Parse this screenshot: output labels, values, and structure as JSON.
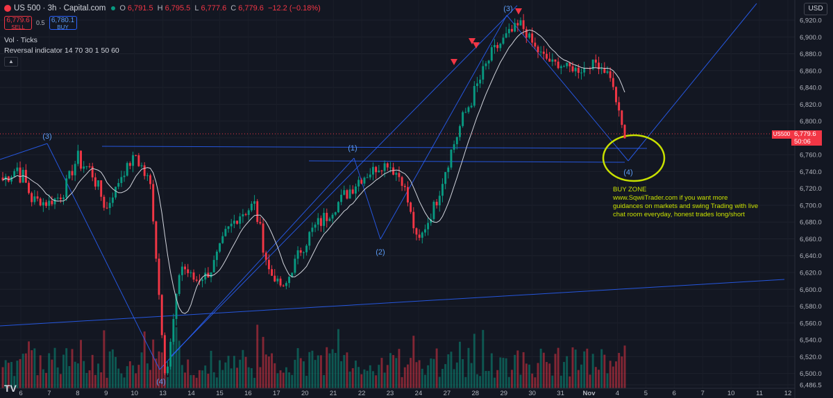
{
  "header": {
    "title": "US 500 · 3h · Capital.com",
    "ohlc": [
      {
        "label": "O",
        "value": "6,791.5"
      },
      {
        "label": "H",
        "value": "6,795.5"
      },
      {
        "label": "L",
        "value": "6,777.6"
      },
      {
        "label": "C",
        "value": "6,779.6"
      }
    ],
    "change": "−12.2 (−0.18%)",
    "sell_price": "6,779.6",
    "sell_label": "SELL",
    "spread": "0.5",
    "buy_price": "6,780.1",
    "buy_label": "BUY",
    "indicator_vol": "Vol · Ticks",
    "indicator_reversal": "Reversal indicator 14 70 30 1 50 60",
    "collapse_glyph": "▲"
  },
  "currency": "USD",
  "logo": "TV",
  "last_price": {
    "symbol": "US500",
    "price": "6,779.6",
    "countdown": "50:06"
  },
  "annotation": {
    "title": "BUY ZONE",
    "lines": [
      "www.SqwiiTrader.com  if you want more",
      "guidances on markets and swing Trading with live",
      "chat room everyday, honest trades long/short"
    ]
  },
  "colors": {
    "up": "#089981",
    "down": "#f23645",
    "ma": "#d1d4dc",
    "trend": "#2962ff",
    "circle": "#c8e000",
    "bg": "#131722"
  },
  "chart_data": {
    "type": "candlestick",
    "ylim": [
      6480,
      6930
    ],
    "yticks": [
      6486.5,
      6500,
      6520,
      6540,
      6560,
      6580,
      6600,
      6620,
      6640,
      6660,
      6680,
      6700,
      6720,
      6740,
      6760,
      6780,
      6800,
      6820,
      6840,
      6860,
      6880,
      6900,
      6920
    ],
    "ytick_labels": [
      "6,486.5",
      "6,500.0",
      "6,520.0",
      "6,540.0",
      "6,560.0",
      "6,580.0",
      "6,600.0",
      "6,620.0",
      "6,640.0",
      "6,660.0",
      "6,680.0",
      "6,700.0",
      "6,720.0",
      "6,740.0",
      "6,760.0",
      "6,780.0",
      "6,800.0",
      "6,820.0",
      "6,840.0",
      "6,860.0",
      "6,880.0",
      "6,900.0",
      "6,920.0"
    ],
    "xticks": [
      "6",
      "7",
      "8",
      "9",
      "10",
      "13",
      "14",
      "15",
      "16",
      "17",
      "20",
      "21",
      "22",
      "23",
      "24",
      "27",
      "28",
      "29",
      "30",
      "31",
      "Nov",
      "4",
      "5",
      "6",
      "7",
      "10",
      "11",
      "12"
    ],
    "price_path": [
      [
        6730,
        6745,
        6708,
        6702,
        6712,
        6755,
        6740,
        6695,
        6735,
        6760,
        6720,
        6490,
        6630,
        6610,
        6620,
        6665,
        6690,
        6700,
        6620,
        6600,
        6645,
        6672,
        6690,
        6710,
        6730,
        6742,
        6750,
        6730,
        6655,
        6690,
        6750,
        6800,
        6840,
        6880,
        6900,
        6915,
        6885,
        6870,
        6865,
        6860,
        6870,
        6855,
        6780
      ],
      [
        10,
        14,
        6,
        6,
        8,
        12,
        10,
        4,
        6,
        12,
        4,
        4,
        6,
        6,
        6,
        8,
        10,
        10,
        4,
        6,
        10,
        10,
        8,
        10,
        8,
        6,
        8,
        6,
        4,
        10,
        10,
        10,
        10,
        8,
        8,
        6,
        5,
        5,
        5,
        5,
        5,
        4,
        0
      ]
    ],
    "volume_max": 100,
    "waves": [
      {
        "label": "(3)",
        "price": 6785
      },
      {
        "label": "(4)",
        "price": 6478
      },
      {
        "label": "(1)",
        "price": 6750
      },
      {
        "label": "(2)",
        "price": 6652
      },
      {
        "label": "(3)",
        "price": 6928
      },
      {
        "label": "(4)",
        "price": 6744
      }
    ],
    "horizontal_levels": [
      6766,
      6762,
      6746
    ]
  }
}
